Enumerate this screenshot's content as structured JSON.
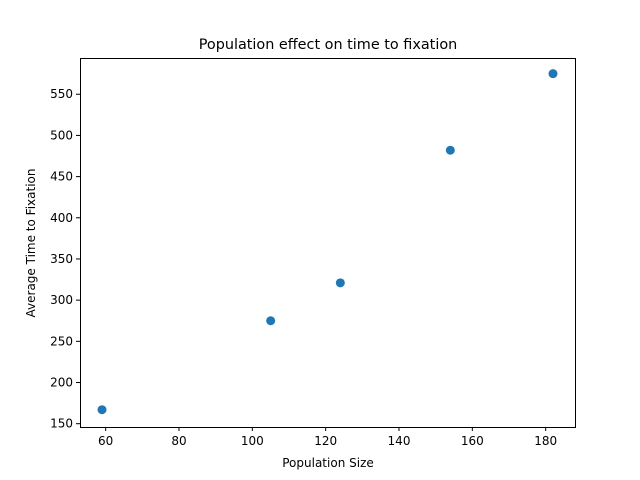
{
  "chart_data": {
    "type": "scatter",
    "title": "Population effect on time to fixation",
    "xlabel": "Population Size",
    "ylabel": "Average Time to Fixation",
    "xlim": [
      53,
      188
    ],
    "ylim": [
      146,
      594
    ],
    "x_ticks": [
      60,
      80,
      100,
      120,
      140,
      160,
      180
    ],
    "y_ticks": [
      150,
      200,
      250,
      300,
      350,
      400,
      450,
      500,
      550
    ],
    "grid": false,
    "series": [
      {
        "color": "#1f77b4",
        "points": [
          {
            "x": 59,
            "y": 167
          },
          {
            "x": 105,
            "y": 275
          },
          {
            "x": 124,
            "y": 321
          },
          {
            "x": 154,
            "y": 482
          },
          {
            "x": 182,
            "y": 575
          }
        ]
      }
    ]
  }
}
